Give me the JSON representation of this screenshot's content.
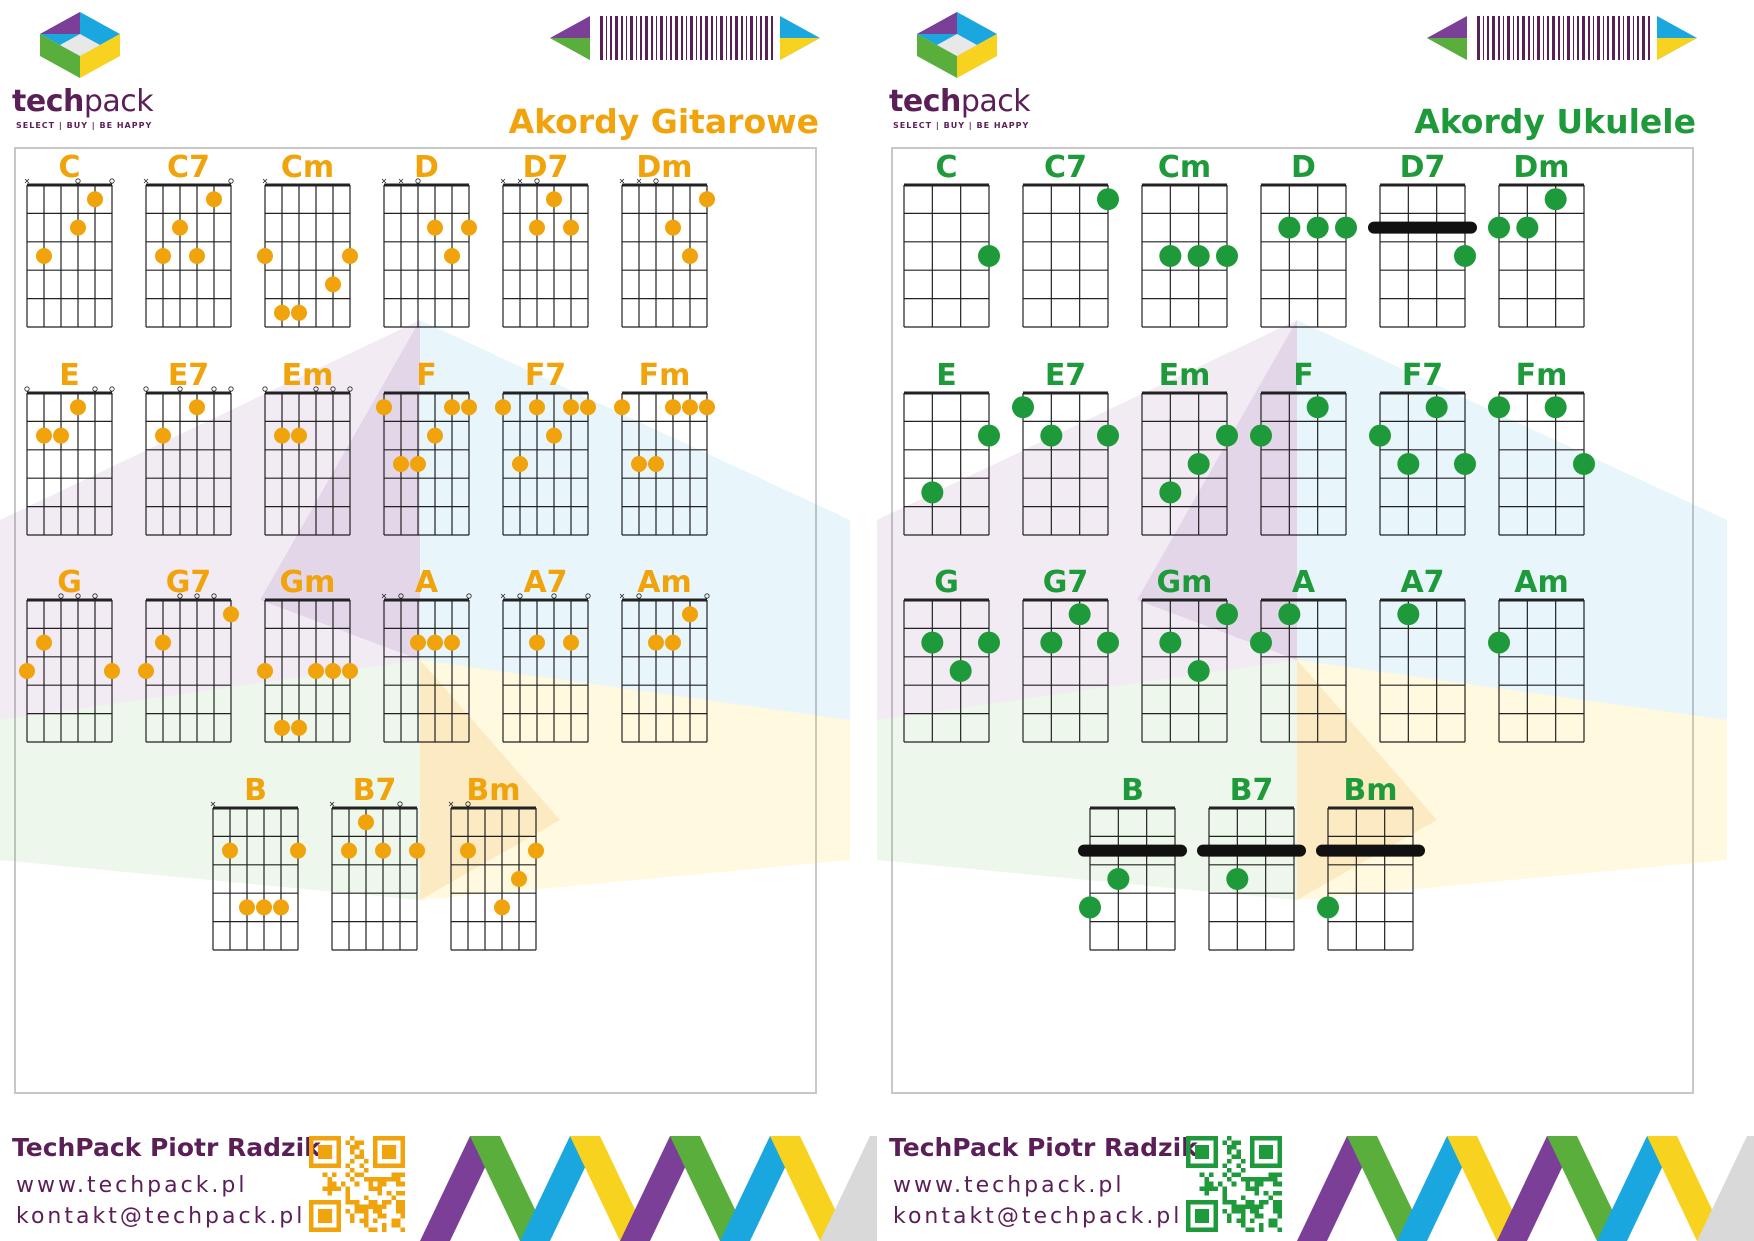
{
  "brand": {
    "name_bold": "tech",
    "name_light": "pack",
    "tagline": "SELECT | BUY | BE HAPPY",
    "logo_icon": "hexagon-cube-logo-icon",
    "barcode_icon": "barcode-icon"
  },
  "colors": {
    "guitar_accent": "#f0a30a",
    "ukulele_accent": "#1f9a3a",
    "brand_purple": "#5b1f57",
    "purple": "#7b3f98",
    "green": "#5aae3c",
    "blue": "#1aa7e0",
    "yellow": "#f7d21e",
    "orange": "#f29a18"
  },
  "footer": {
    "company": "TechPack Piotr Radzik",
    "website": "www.techpack.pl",
    "email": "kontakt@techpack.pl",
    "qr_icon": "qr-code-icon",
    "pattern_icon": "zigzag-pattern-icon"
  },
  "guitar": {
    "title": "Akordy Gitarowe",
    "strings": 6,
    "frets": 5,
    "chords": [
      {
        "name": "C",
        "marks": "x  o o",
        "dots": [
          [
            5,
            1
          ],
          [
            4,
            2
          ],
          [
            2,
            3
          ]
        ],
        "barres": []
      },
      {
        "name": "C7",
        "marks": "x    o",
        "dots": [
          [
            5,
            1
          ],
          [
            3,
            2
          ],
          [
            4,
            3
          ],
          [
            2,
            3
          ]
        ],
        "barres": []
      },
      {
        "name": "Cm",
        "marks": "x     ",
        "dots": [
          [
            6,
            3
          ],
          [
            1,
            3
          ],
          [
            5,
            4
          ],
          [
            2,
            5
          ],
          [
            3,
            5
          ]
        ],
        "barres": []
      },
      {
        "name": "D",
        "marks": "xxo   ",
        "dots": [
          [
            4,
            2
          ],
          [
            6,
            2
          ],
          [
            5,
            3
          ]
        ],
        "barres": []
      },
      {
        "name": "D7",
        "marks": "xxo   ",
        "dots": [
          [
            4,
            1
          ],
          [
            3,
            2
          ],
          [
            5,
            2
          ]
        ],
        "barres": []
      },
      {
        "name": "Dm",
        "marks": "xxo   ",
        "dots": [
          [
            6,
            1
          ],
          [
            4,
            2
          ],
          [
            5,
            3
          ]
        ],
        "barres": []
      },
      {
        "name": "E",
        "marks": "o   oo",
        "dots": [
          [
            4,
            1
          ],
          [
            2,
            2
          ],
          [
            3,
            2
          ]
        ],
        "barres": []
      },
      {
        "name": "E7",
        "marks": "o o oo",
        "dots": [
          [
            4,
            1
          ],
          [
            2,
            2
          ]
        ],
        "barres": []
      },
      {
        "name": "Em",
        "marks": "o  ooo",
        "dots": [
          [
            2,
            2
          ],
          [
            3,
            2
          ]
        ],
        "barres": []
      },
      {
        "name": "F",
        "marks": "      ",
        "dots": [
          [
            1,
            1
          ],
          [
            5,
            1
          ],
          [
            6,
            1
          ],
          [
            4,
            2
          ],
          [
            2,
            3
          ],
          [
            3,
            3
          ]
        ],
        "barres": []
      },
      {
        "name": "F7",
        "marks": "      ",
        "dots": [
          [
            1,
            1
          ],
          [
            3,
            1
          ],
          [
            5,
            1
          ],
          [
            6,
            1
          ],
          [
            4,
            2
          ],
          [
            2,
            3
          ]
        ],
        "barres": []
      },
      {
        "name": "Fm",
        "marks": "      ",
        "dots": [
          [
            1,
            1
          ],
          [
            4,
            1
          ],
          [
            5,
            1
          ],
          [
            6,
            1
          ],
          [
            2,
            3
          ],
          [
            3,
            3
          ]
        ],
        "barres": []
      },
      {
        "name": "G",
        "marks": "  ooo ",
        "dots": [
          [
            2,
            2
          ],
          [
            1,
            3
          ],
          [
            6,
            3
          ]
        ],
        "barres": []
      },
      {
        "name": "G7",
        "marks": "  ooo ",
        "dots": [
          [
            6,
            1
          ],
          [
            2,
            2
          ],
          [
            1,
            3
          ]
        ],
        "barres": []
      },
      {
        "name": "Gm",
        "marks": "      ",
        "dots": [
          [
            1,
            3
          ],
          [
            4,
            3
          ],
          [
            5,
            3
          ],
          [
            6,
            3
          ],
          [
            2,
            5
          ],
          [
            3,
            5
          ]
        ],
        "barres": []
      },
      {
        "name": "A",
        "marks": "xo   o",
        "dots": [
          [
            3,
            2
          ],
          [
            4,
            2
          ],
          [
            5,
            2
          ]
        ],
        "barres": []
      },
      {
        "name": "A7",
        "marks": "xo o o",
        "dots": [
          [
            3,
            2
          ],
          [
            5,
            2
          ]
        ],
        "barres": []
      },
      {
        "name": "Am",
        "marks": "xo   o",
        "dots": [
          [
            5,
            1
          ],
          [
            3,
            2
          ],
          [
            4,
            2
          ]
        ],
        "barres": []
      },
      {
        "name": "B",
        "marks": "x     ",
        "dots": [
          [
            2,
            2
          ],
          [
            6,
            2
          ],
          [
            3,
            4
          ],
          [
            4,
            4
          ],
          [
            5,
            4
          ]
        ],
        "barres": []
      },
      {
        "name": "B7",
        "marks": "x   o ",
        "dots": [
          [
            3,
            1
          ],
          [
            2,
            2
          ],
          [
            4,
            2
          ],
          [
            6,
            2
          ]
        ],
        "barres": []
      },
      {
        "name": "Bm",
        "marks": "xo    ",
        "dots": [
          [
            2,
            2
          ],
          [
            6,
            2
          ],
          [
            5,
            3
          ],
          [
            4,
            4
          ]
        ],
        "barres": []
      }
    ]
  },
  "ukulele": {
    "title": "Akordy Ukulele",
    "strings": 4,
    "frets": 5,
    "chords": [
      {
        "name": "C",
        "marks": "",
        "dots": [
          [
            4,
            3
          ]
        ],
        "barres": []
      },
      {
        "name": "C7",
        "marks": "",
        "dots": [
          [
            4,
            1
          ]
        ],
        "barres": []
      },
      {
        "name": "Cm",
        "marks": "",
        "dots": [
          [
            2,
            3
          ],
          [
            3,
            3
          ],
          [
            4,
            3
          ]
        ],
        "barres": []
      },
      {
        "name": "D",
        "marks": "",
        "dots": [
          [
            2,
            2
          ],
          [
            3,
            2
          ],
          [
            4,
            2
          ]
        ],
        "barres": []
      },
      {
        "name": "D7",
        "marks": "",
        "dots": [
          [
            4,
            3
          ]
        ],
        "barres": [
          2
        ]
      },
      {
        "name": "Dm",
        "marks": "",
        "dots": [
          [
            3,
            1
          ],
          [
            1,
            2
          ],
          [
            2,
            2
          ]
        ],
        "barres": []
      },
      {
        "name": "E",
        "marks": "",
        "dots": [
          [
            4,
            2
          ],
          [
            2,
            4
          ]
        ],
        "barres": []
      },
      {
        "name": "E7",
        "marks": "",
        "dots": [
          [
            1,
            1
          ],
          [
            2,
            2
          ],
          [
            4,
            2
          ]
        ],
        "barres": []
      },
      {
        "name": "Em",
        "marks": "",
        "dots": [
          [
            4,
            2
          ],
          [
            3,
            3
          ],
          [
            2,
            4
          ]
        ],
        "barres": []
      },
      {
        "name": "F",
        "marks": "",
        "dots": [
          [
            3,
            1
          ],
          [
            1,
            2
          ]
        ],
        "barres": []
      },
      {
        "name": "F7",
        "marks": "",
        "dots": [
          [
            3,
            1
          ],
          [
            1,
            2
          ],
          [
            2,
            3
          ],
          [
            4,
            3
          ]
        ],
        "barres": []
      },
      {
        "name": "Fm",
        "marks": "",
        "dots": [
          [
            1,
            1
          ],
          [
            3,
            1
          ],
          [
            4,
            3
          ]
        ],
        "barres": []
      },
      {
        "name": "G",
        "marks": "",
        "dots": [
          [
            2,
            2
          ],
          [
            4,
            2
          ],
          [
            3,
            3
          ]
        ],
        "barres": []
      },
      {
        "name": "G7",
        "marks": "",
        "dots": [
          [
            3,
            1
          ],
          [
            2,
            2
          ],
          [
            4,
            2
          ]
        ],
        "barres": []
      },
      {
        "name": "Gm",
        "marks": "",
        "dots": [
          [
            4,
            1
          ],
          [
            2,
            2
          ],
          [
            3,
            3
          ]
        ],
        "barres": []
      },
      {
        "name": "A",
        "marks": "",
        "dots": [
          [
            2,
            1
          ],
          [
            1,
            2
          ]
        ],
        "barres": []
      },
      {
        "name": "A7",
        "marks": "",
        "dots": [
          [
            2,
            1
          ]
        ],
        "barres": []
      },
      {
        "name": "Am",
        "marks": "",
        "dots": [
          [
            1,
            2
          ]
        ],
        "barres": []
      },
      {
        "name": "B",
        "marks": "",
        "dots": [
          [
            2,
            3
          ],
          [
            1,
            4
          ]
        ],
        "barres": [
          2
        ]
      },
      {
        "name": "B7",
        "marks": "",
        "dots": [
          [
            2,
            3
          ]
        ],
        "barres": [
          2
        ]
      },
      {
        "name": "Bm",
        "marks": "",
        "dots": [
          [
            1,
            4
          ]
        ],
        "barres": [
          2
        ]
      }
    ]
  }
}
